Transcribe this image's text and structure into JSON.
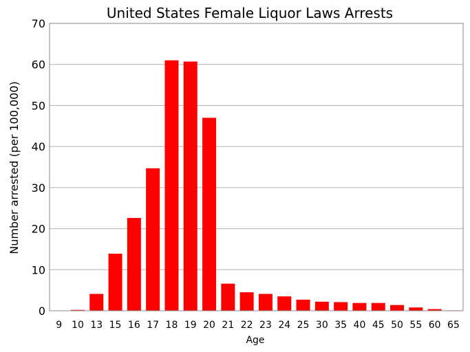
{
  "chart_data": {
    "type": "bar",
    "title": "United States Female Liquor Laws Arrests",
    "xlabel": "Age",
    "ylabel": "Number arrested (per 100,000)",
    "categories": [
      "9",
      "10",
      "13",
      "15",
      "16",
      "17",
      "18",
      "19",
      "20",
      "21",
      "22",
      "23",
      "24",
      "25",
      "30",
      "35",
      "40",
      "45",
      "50",
      "55",
      "60",
      "65"
    ],
    "values": [
      0,
      0.2,
      4.1,
      13.9,
      22.6,
      34.7,
      61.0,
      60.7,
      47.0,
      6.6,
      4.5,
      4.1,
      3.5,
      2.7,
      2.2,
      2.1,
      1.9,
      1.9,
      1.4,
      0.8,
      0.4,
      0.1
    ],
    "ylim": [
      0,
      70
    ],
    "yticks": [
      0,
      10,
      20,
      30,
      40,
      50,
      60,
      70
    ],
    "grid": true,
    "legend": "none",
    "bar_color": "#ff0000"
  }
}
